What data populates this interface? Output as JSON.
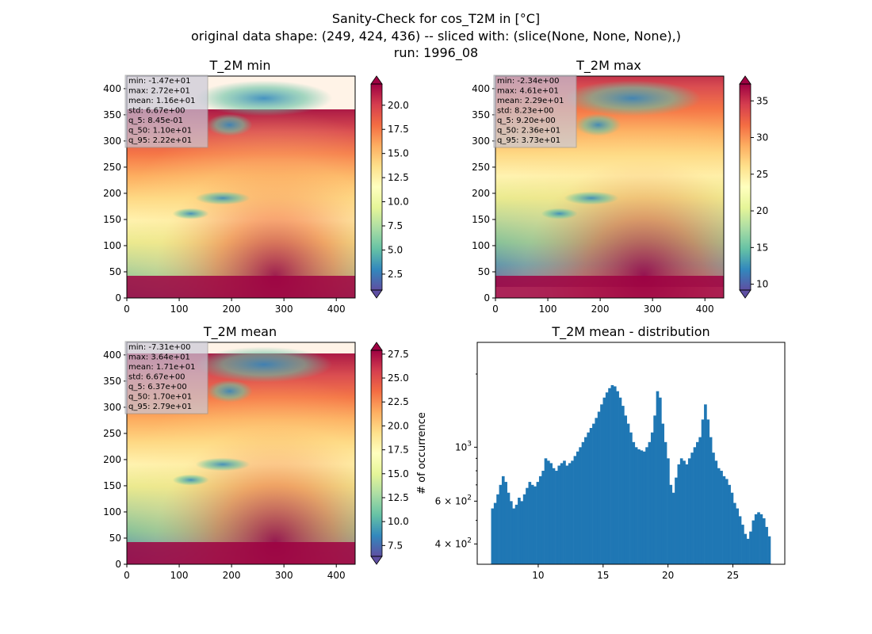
{
  "figure": {
    "suptitle": [
      "Sanity-Check for cos_T2M in [°C]",
      "original data shape: (249, 424, 436) -- sliced with: (slice(None, None, None),)",
      "run: 1996_08"
    ]
  },
  "colors": {
    "bar": "#1f77b4",
    "spectral_r": [
      "#5e4fa2",
      "#3288bd",
      "#66c2a5",
      "#abdda4",
      "#e6f598",
      "#ffffbf",
      "#fee08b",
      "#fdae61",
      "#f46d43",
      "#d53e4f",
      "#9e0142"
    ]
  },
  "map_axes": {
    "x_ticks": [
      0,
      100,
      200,
      300,
      400
    ],
    "y_ticks": [
      0,
      50,
      100,
      150,
      200,
      250,
      300,
      350,
      400
    ],
    "xlim": [
      0,
      436
    ],
    "ylim": [
      0,
      424
    ]
  },
  "panels": [
    {
      "title": "T_2M min",
      "stats": [
        "min: -1.47e+01",
        "max: 2.72e+01",
        "mean: 1.16e+01",
        "std: 6.67e+00",
        "q_5: 8.45e-01",
        "q_50: 1.10e+01",
        "q_95: 2.22e+01"
      ],
      "colorbar": {
        "ticks": [
          "2.5",
          "5.0",
          "7.5",
          "10.0",
          "12.5",
          "15.0",
          "17.5",
          "20.0"
        ],
        "range": [
          0.85,
          22.2
        ],
        "extend": "both"
      }
    },
    {
      "title": "T_2M max",
      "stats": [
        "min: -2.34e+00",
        "max: 4.61e+01",
        "mean: 2.29e+01",
        "std: 8.23e+00",
        "q_5: 9.20e+00",
        "q_50: 2.36e+01",
        "q_95: 3.73e+01"
      ],
      "colorbar": {
        "ticks": [
          "10",
          "15",
          "20",
          "25",
          "30",
          "35"
        ],
        "range": [
          9.2,
          37.3
        ],
        "extend": "both"
      }
    },
    {
      "title": "T_2M mean",
      "stats": [
        "min: -7.31e+00",
        "max: 3.64e+01",
        "mean: 1.71e+01",
        "std: 6.67e+00",
        "q_5: 6.37e+00",
        "q_50: 1.70e+01",
        "q_95: 2.79e+01"
      ],
      "colorbar": {
        "ticks": [
          "7.5",
          "10.0",
          "12.5",
          "15.0",
          "17.5",
          "20.0",
          "22.5",
          "25.0",
          "27.5"
        ],
        "range": [
          6.37,
          27.9
        ],
        "extend": "both"
      }
    }
  ],
  "chart_data": {
    "type": "bar",
    "title": "T_2M mean - distribution",
    "xlabel": "",
    "ylabel": "# of occurrence",
    "yscale": "log",
    "xlim": [
      5.3,
      29.0
    ],
    "ylim": [
      330,
      2700
    ],
    "x_ticks": [
      10,
      15,
      20,
      25
    ],
    "y_tick_labels": [
      {
        "label": "4 × 10",
        "exp": "2",
        "value": 400
      },
      {
        "label": "6 × 10",
        "exp": "2",
        "value": 600
      },
      {
        "label": "10",
        "exp": "3",
        "value": 1000
      }
    ],
    "bin_range": [
      6.37,
      27.9
    ],
    "counts": [
      560,
      590,
      640,
      700,
      760,
      720,
      650,
      600,
      560,
      580,
      620,
      600,
      640,
      680,
      720,
      700,
      690,
      720,
      760,
      800,
      900,
      880,
      860,
      820,
      800,
      840,
      860,
      880,
      840,
      860,
      880,
      920,
      960,
      1000,
      1050,
      1100,
      1150,
      1200,
      1250,
      1320,
      1400,
      1500,
      1600,
      1680,
      1750,
      1800,
      1780,
      1700,
      1600,
      1480,
      1350,
      1250,
      1150,
      1050,
      1000,
      980,
      970,
      960,
      1000,
      1050,
      1150,
      1350,
      1700,
      1600,
      1250,
      1050,
      900,
      700,
      650,
      750,
      850,
      900,
      880,
      850,
      900,
      950,
      1000,
      1050,
      1100,
      1300,
      1500,
      1300,
      1100,
      950,
      880,
      820,
      800,
      760,
      740,
      700,
      650,
      590,
      560,
      520,
      480,
      440,
      420,
      450,
      500,
      530,
      540,
      530,
      510,
      470,
      430
    ]
  }
}
